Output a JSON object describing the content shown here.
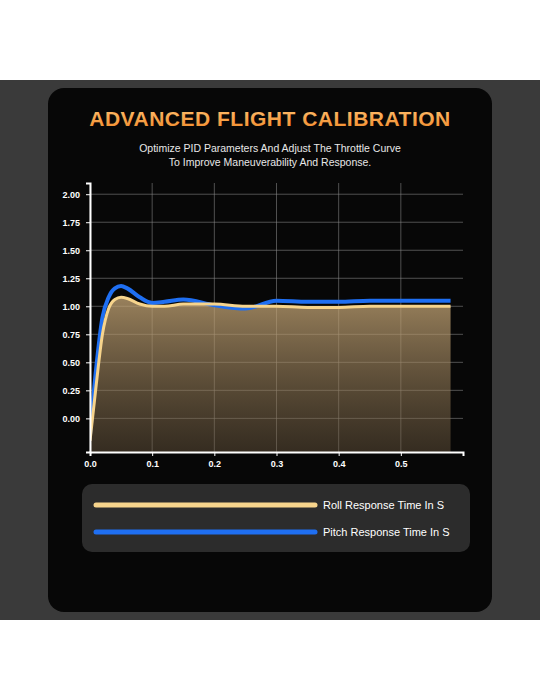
{
  "chart_data": {
    "type": "line",
    "title": "ADVANCED FLIGHT CALIBRATION",
    "subtitle": [
      "Optimize PID Parameters And Adjust The Throttle Curve",
      "To Improve Maneuverability And Response."
    ],
    "x": [
      0,
      0.01,
      0.02,
      0.03,
      0.04,
      0.05,
      0.06,
      0.08,
      0.1,
      0.12,
      0.15,
      0.2,
      0.25,
      0.3,
      0.35,
      0.4,
      0.45,
      0.5,
      0.55,
      0.58
    ],
    "series": [
      {
        "name": "Roll Response Time In S",
        "color": "#f7d48c",
        "type": "area",
        "values": [
          -0.2,
          0.3,
          0.75,
          0.98,
          1.06,
          1.08,
          1.07,
          1.02,
          1.0,
          1.0,
          1.02,
          1.02,
          1.0,
          1.0,
          0.99,
          0.99,
          1.0,
          1.0,
          1.0,
          1.0
        ]
      },
      {
        "name": "Pitch Response Time In S",
        "color": "#1f6ff2",
        "type": "line",
        "values": [
          -0.15,
          0.45,
          0.9,
          1.08,
          1.16,
          1.18,
          1.16,
          1.08,
          1.03,
          1.04,
          1.06,
          1.01,
          0.98,
          1.05,
          1.04,
          1.04,
          1.05,
          1.05,
          1.05,
          1.05
        ]
      }
    ],
    "xlim": [
      0,
      0.6
    ],
    "xticks": [
      {
        "value": 0,
        "label": "0.0"
      },
      0.1,
      0.2,
      0.3,
      0.4,
      0.5
    ],
    "ylim": [
      -0.3,
      2.1
    ],
    "yticks": [
      {
        "value": 0,
        "label": "0.00"
      },
      {
        "value": 0.25,
        "label": "0.25"
      },
      {
        "value": 0.5,
        "label": "0.50"
      },
      {
        "value": 0.75,
        "label": "0.75"
      },
      {
        "value": 1,
        "label": "1.00"
      },
      {
        "value": 1.25,
        "label": "1.25"
      },
      {
        "value": 1.5,
        "label": "1.50"
      },
      {
        "value": 1.75,
        "label": "1.75"
      },
      {
        "value": 2,
        "label": "2.00"
      }
    ],
    "grid": true,
    "legend": "bottom"
  }
}
